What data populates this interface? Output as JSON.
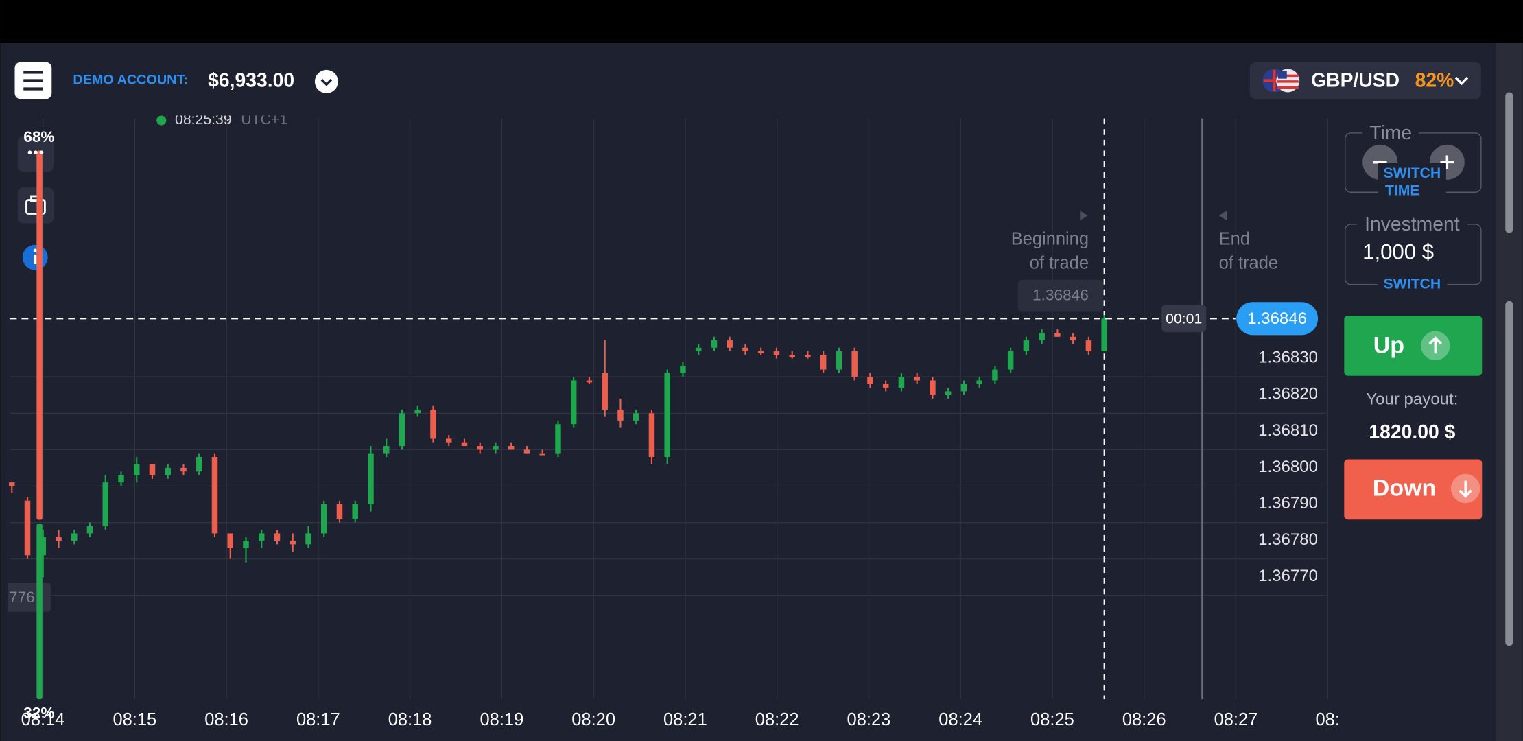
{
  "header": {
    "demo_label": "DEMO ACCOUNT:",
    "balance": "$6,933.00",
    "asset": "GBP/USD",
    "asset_payout": "82%"
  },
  "sentiment": {
    "values": [
      68,
      32
    ],
    "value_labels": [
      "68%",
      "32%"
    ],
    "colors": [
      "#f0604d",
      "#1fa64f"
    ]
  },
  "chart_data": {
    "type": "candlestick",
    "time_marker": "08:25:39",
    "timezone": "UTC+1",
    "up_color": "#1fa64f",
    "down_color": "#ea5f4e",
    "open": [
      1.36801,
      1.36796,
      1.36781,
      1.36786,
      1.36785,
      1.36787,
      1.36789,
      1.36801,
      1.36803,
      1.36806,
      1.36803,
      1.36805,
      1.36804,
      1.36808,
      1.36787,
      1.36783,
      1.36785,
      1.36787,
      1.36785,
      1.36784,
      1.36787,
      1.36795,
      1.36791,
      1.36795,
      1.36809,
      1.36811,
      1.3682,
      1.36821,
      1.36813,
      1.36812,
      1.36811,
      1.3681,
      1.36811,
      1.3681,
      1.36809,
      1.36809,
      1.36817,
      1.36829,
      1.36831,
      1.36821,
      1.36818,
      1.3682,
      1.36808,
      1.36831,
      1.36837,
      1.36838,
      1.3684,
      1.36838,
      1.36837,
      1.36837,
      1.36836,
      1.36836,
      1.36836,
      1.36832,
      1.36837,
      1.3683,
      1.36828,
      1.36827,
      1.3683,
      1.36829,
      1.36825,
      1.36826,
      1.36828,
      1.36829,
      1.36832,
      1.36837,
      1.3684,
      1.36842,
      1.36841,
      1.3684,
      1.36837
    ],
    "high": [
      1.36801,
      1.36797,
      1.36788,
      1.36788,
      1.36788,
      1.3679,
      1.36803,
      1.36804,
      1.36808,
      1.36806,
      1.36806,
      1.36806,
      1.36809,
      1.36809,
      1.36787,
      1.36786,
      1.36788,
      1.36788,
      1.36787,
      1.36789,
      1.36796,
      1.36796,
      1.36796,
      1.36811,
      1.36813,
      1.36821,
      1.36822,
      1.36822,
      1.36814,
      1.36813,
      1.36812,
      1.36812,
      1.36812,
      1.36811,
      1.3681,
      1.36818,
      1.3683,
      1.3683,
      1.3684,
      1.36824,
      1.36821,
      1.36821,
      1.36832,
      1.36834,
      1.36839,
      1.36841,
      1.36841,
      1.36839,
      1.36838,
      1.36838,
      1.36837,
      1.36837,
      1.36837,
      1.36838,
      1.36838,
      1.36831,
      1.36829,
      1.36831,
      1.36831,
      1.3683,
      1.36827,
      1.36829,
      1.3683,
      1.36833,
      1.36838,
      1.36841,
      1.36843,
      1.36843,
      1.36842,
      1.36841,
      1.36847
    ],
    "low": [
      1.36798,
      1.3678,
      1.36775,
      1.36783,
      1.36784,
      1.36786,
      1.36788,
      1.368,
      1.36801,
      1.36802,
      1.36802,
      1.36803,
      1.36803,
      1.36786,
      1.3678,
      1.36779,
      1.36783,
      1.36784,
      1.36782,
      1.36783,
      1.36786,
      1.3679,
      1.3679,
      1.36793,
      1.36808,
      1.3681,
      1.36819,
      1.36812,
      1.36811,
      1.36811,
      1.36809,
      1.36809,
      1.3681,
      1.36809,
      1.36809,
      1.36808,
      1.36816,
      1.36828,
      1.36819,
      1.36816,
      1.36817,
      1.36806,
      1.36806,
      1.3683,
      1.36836,
      1.36837,
      1.36837,
      1.36836,
      1.36836,
      1.36835,
      1.36835,
      1.36835,
      1.36831,
      1.36831,
      1.36829,
      1.36827,
      1.36826,
      1.36826,
      1.36828,
      1.36824,
      1.36824,
      1.36825,
      1.36827,
      1.36828,
      1.36831,
      1.36836,
      1.36839,
      1.36841,
      1.36839,
      1.36836,
      1.36837
    ],
    "close": [
      1.368,
      1.36781,
      1.36786,
      1.36785,
      1.36787,
      1.36789,
      1.36801,
      1.36803,
      1.36806,
      1.36803,
      1.36805,
      1.36804,
      1.36808,
      1.36787,
      1.36783,
      1.36785,
      1.36787,
      1.36785,
      1.36784,
      1.36787,
      1.36795,
      1.36791,
      1.36795,
      1.36809,
      1.36811,
      1.3682,
      1.36821,
      1.36813,
      1.36812,
      1.36811,
      1.3681,
      1.36811,
      1.3681,
      1.36809,
      1.36809,
      1.36817,
      1.36829,
      1.36829,
      1.36821,
      1.36818,
      1.3682,
      1.36808,
      1.36831,
      1.36833,
      1.36838,
      1.3684,
      1.36838,
      1.36837,
      1.36837,
      1.36836,
      1.36836,
      1.36836,
      1.36832,
      1.36837,
      1.3683,
      1.36828,
      1.36827,
      1.3683,
      1.36829,
      1.36825,
      1.36826,
      1.36828,
      1.36829,
      1.36832,
      1.36837,
      1.3684,
      1.36842,
      1.36841,
      1.3684,
      1.36837,
      1.36846
    ],
    "ylim": [
      1.3674,
      1.369
    ],
    "yticks": [
      {
        "value": 1.3683,
        "label": "1.36830"
      },
      {
        "value": 1.3682,
        "label": "1.36820"
      },
      {
        "value": 1.3681,
        "label": "1.36810"
      },
      {
        "value": 1.368,
        "label": "1.36800"
      },
      {
        "value": 1.3679,
        "label": "1.36790"
      },
      {
        "value": 1.3678,
        "label": "1.36780"
      },
      {
        "value": 1.3677,
        "label": "1.36770"
      }
    ],
    "xticks": [
      "08:14",
      "08:15",
      "08:16",
      "08:17",
      "08:18",
      "08:19",
      "08:20",
      "08:21",
      "08:22",
      "08:23",
      "08:24",
      "08:25",
      "08:26",
      "08:27",
      "08:"
    ],
    "current_price": {
      "value": 1.36846,
      "label": "1.36846"
    },
    "timer": "00:01",
    "hover_label": "776",
    "start_label": [
      "Beginning",
      "of trade"
    ],
    "end_label": [
      "End",
      "of trade"
    ]
  },
  "trade_panel": {
    "time_label": "Time",
    "switch_time": [
      "SWITCH",
      "TIME"
    ],
    "investment_label": "Investment",
    "investment": "1,000 $",
    "switch": "SWITCH",
    "up": "Up",
    "payout_label": "Your payout:",
    "payout": "1820.00 $",
    "down": "Down"
  }
}
